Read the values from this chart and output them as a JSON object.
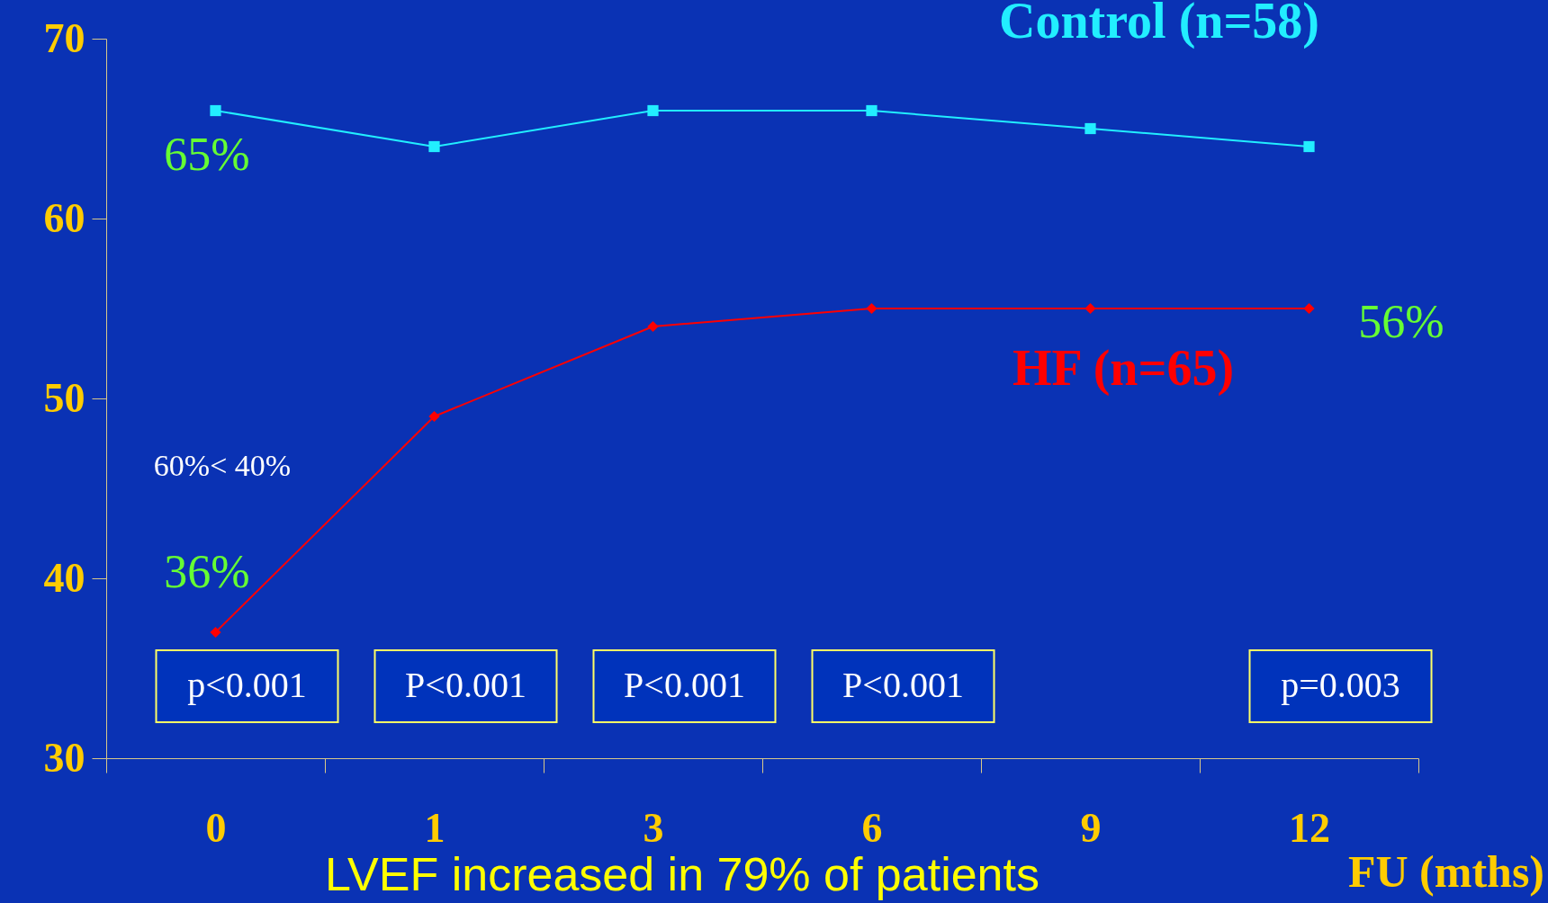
{
  "chart_data": {
    "type": "line",
    "xlabel": "FU (mths)",
    "categories": [
      "0",
      "1",
      "3",
      "6",
      "9",
      "12"
    ],
    "series": [
      {
        "name": "Control (n=58)",
        "color": "#22eeff",
        "marker": "square",
        "values": [
          66,
          64,
          66,
          66,
          65,
          64
        ]
      },
      {
        "name": "HF (n=65)",
        "color": "#ff0000",
        "marker": "diamond",
        "values": [
          37,
          49,
          54,
          55,
          55,
          55
        ]
      }
    ],
    "line_style": "solid",
    "ylim": [
      30,
      70
    ],
    "yticks": [
      30,
      40,
      50,
      60,
      70
    ],
    "annotations": [
      "65%",
      "36%",
      "56%",
      "60%< 40%",
      "p<0.001",
      "P<0.001",
      "P<0.001",
      "P<0.001",
      "p=0.003",
      "LVEF increased in 79% of patients"
    ]
  }
}
